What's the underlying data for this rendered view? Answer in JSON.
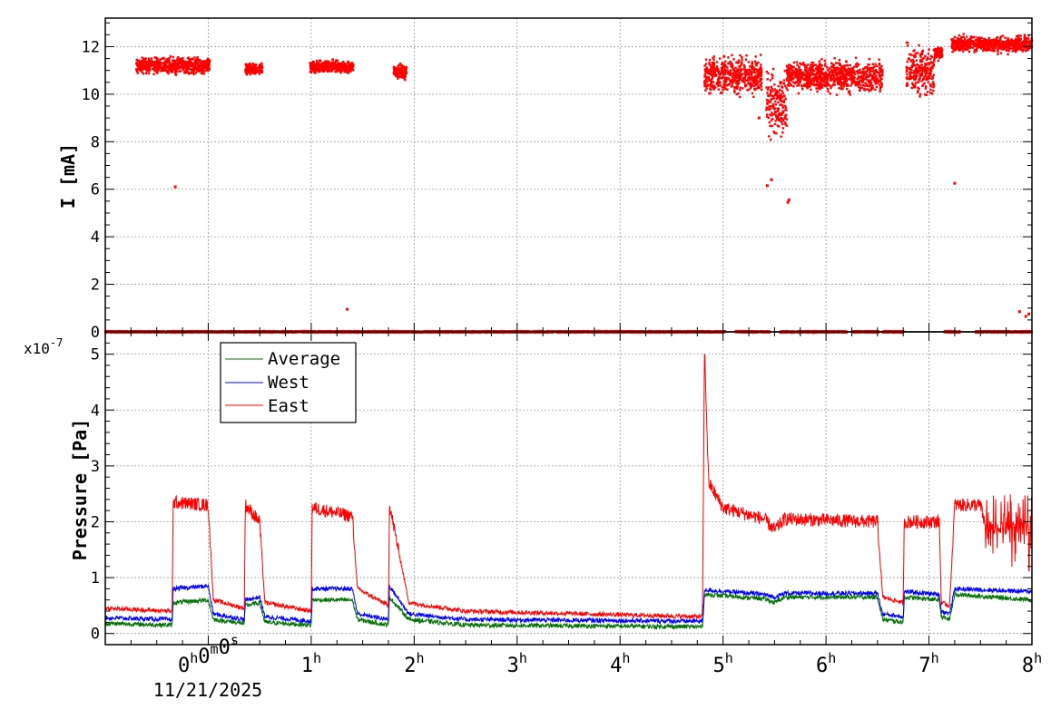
{
  "chart_data": [
    {
      "type": "scatter",
      "ylabel": "I [mA]",
      "ylim": [
        0,
        13.2
      ],
      "yticks": [
        "0",
        "2",
        "4",
        "6",
        "8",
        "10",
        "12"
      ],
      "xlim_hours": [
        -1.0,
        8.0
      ],
      "grid": true,
      "series": [
        {
          "name": "",
          "color": "#ff0000",
          "segments": [
            {
              "x0": -0.7,
              "x1": 0.02,
              "y": 11.2,
              "spread": 0.15
            },
            {
              "x0": 0.36,
              "x1": 0.53,
              "y": 11.05,
              "spread": 0.12
            },
            {
              "x0": 0.99,
              "x1": 1.41,
              "y": 11.15,
              "spread": 0.12
            },
            {
              "x0": 1.8,
              "x1": 1.93,
              "y": 10.95,
              "spread": 0.15
            },
            {
              "x0": 4.82,
              "x1": 5.38,
              "y": 10.8,
              "spread": 0.35
            },
            {
              "x0": 5.42,
              "x1": 5.62,
              "y": 9.5,
              "spread": 0.6
            },
            {
              "x0": 5.62,
              "x1": 6.55,
              "y": 10.75,
              "spread": 0.3
            },
            {
              "x0": 6.78,
              "x1": 7.05,
              "y": 11.0,
              "spread": 0.45
            },
            {
              "x0": 7.05,
              "x1": 7.13,
              "y": 11.7,
              "spread": 0.12
            },
            {
              "x0": 7.22,
              "x1": 8.0,
              "y": 12.1,
              "spread": 0.15
            }
          ],
          "zero_segments": [
            [
              -1.0,
              4.8
            ],
            [
              4.8,
              5.02
            ],
            [
              5.12,
              5.45
            ],
            [
              5.55,
              5.7
            ],
            [
              5.72,
              6.2
            ],
            [
              6.25,
              6.52
            ],
            [
              6.55,
              6.75
            ],
            [
              7.15,
              7.3
            ],
            [
              7.45,
              8.0
            ]
          ],
          "outliers": [
            {
              "x": -0.32,
              "y": 6.1
            },
            {
              "x": 1.35,
              "y": 0.95
            },
            {
              "x": 5.35,
              "y": 9.0
            },
            {
              "x": 5.43,
              "y": 6.15
            },
            {
              "x": 5.47,
              "y": 6.4
            },
            {
              "x": 5.63,
              "y": 5.45
            },
            {
              "x": 5.64,
              "y": 5.55
            },
            {
              "x": 7.25,
              "y": 6.25
            },
            {
              "x": 7.88,
              "y": 0.85
            },
            {
              "x": 7.94,
              "y": 0.65
            },
            {
              "x": 7.97,
              "y": 0.75
            }
          ]
        }
      ]
    },
    {
      "type": "line",
      "ylabel": "Pressure [Pa]",
      "yexponent": "x10",
      "yexponent_power": "-7",
      "ylim": [
        -0.2,
        5.4
      ],
      "yticks": [
        "0",
        "1",
        "2",
        "3",
        "4",
        "5"
      ],
      "xlim_hours": [
        -1.0,
        8.0
      ],
      "xticks": [
        {
          "h": "0",
          "m": "0",
          "s": "0",
          "sup": [
            "h",
            "m",
            "s"
          ]
        },
        {
          "h": "1",
          "sup": [
            "h"
          ]
        },
        {
          "h": "2",
          "sup": [
            "h"
          ]
        },
        {
          "h": "3",
          "sup": [
            "h"
          ]
        },
        {
          "h": "4",
          "sup": [
            "h"
          ]
        },
        {
          "h": "5",
          "sup": [
            "h"
          ]
        },
        {
          "h": "6",
          "sup": [
            "h"
          ]
        },
        {
          "h": "7",
          "sup": [
            "h"
          ]
        },
        {
          "h": "8",
          "sup": [
            "h"
          ]
        }
      ],
      "xdate": "11/21/2025",
      "grid": true,
      "legend_position": "top-left",
      "series": [
        {
          "name": "Average",
          "color": "#007000",
          "profile": [
            [
              -1.0,
              0.18
            ],
            [
              -0.35,
              0.15
            ],
            [
              -0.34,
              0.55
            ],
            [
              0.0,
              0.6
            ],
            [
              0.05,
              0.25
            ],
            [
              0.35,
              0.18
            ],
            [
              0.36,
              0.5
            ],
            [
              0.5,
              0.55
            ],
            [
              0.55,
              0.2
            ],
            [
              1.0,
              0.15
            ],
            [
              1.01,
              0.6
            ],
            [
              1.4,
              0.6
            ],
            [
              1.45,
              0.25
            ],
            [
              1.75,
              0.15
            ],
            [
              1.76,
              0.65
            ],
            [
              1.95,
              0.25
            ],
            [
              2.5,
              0.15
            ],
            [
              4.8,
              0.12
            ],
            [
              4.82,
              0.7
            ],
            [
              5.4,
              0.62
            ],
            [
              5.5,
              0.55
            ],
            [
              5.6,
              0.65
            ],
            [
              6.5,
              0.65
            ],
            [
              6.55,
              0.25
            ],
            [
              6.75,
              0.2
            ],
            [
              6.76,
              0.65
            ],
            [
              7.1,
              0.6
            ],
            [
              7.12,
              0.3
            ],
            [
              7.2,
              0.25
            ],
            [
              7.25,
              0.7
            ],
            [
              8.0,
              0.6
            ]
          ]
        },
        {
          "name": "West",
          "color": "#0000ff",
          "profile": [
            [
              -1.0,
              0.28
            ],
            [
              -0.35,
              0.25
            ],
            [
              -0.34,
              0.8
            ],
            [
              0.0,
              0.85
            ],
            [
              0.05,
              0.35
            ],
            [
              0.35,
              0.25
            ],
            [
              0.36,
              0.6
            ],
            [
              0.5,
              0.65
            ],
            [
              0.55,
              0.3
            ],
            [
              1.0,
              0.22
            ],
            [
              1.01,
              0.8
            ],
            [
              1.4,
              0.8
            ],
            [
              1.45,
              0.35
            ],
            [
              1.75,
              0.25
            ],
            [
              1.76,
              0.85
            ],
            [
              1.95,
              0.35
            ],
            [
              2.5,
              0.25
            ],
            [
              4.8,
              0.22
            ],
            [
              4.82,
              0.78
            ],
            [
              5.4,
              0.7
            ],
            [
              5.5,
              0.65
            ],
            [
              5.6,
              0.72
            ],
            [
              6.5,
              0.72
            ],
            [
              6.55,
              0.35
            ],
            [
              6.75,
              0.3
            ],
            [
              6.76,
              0.75
            ],
            [
              7.1,
              0.7
            ],
            [
              7.12,
              0.4
            ],
            [
              7.2,
              0.35
            ],
            [
              7.25,
              0.8
            ],
            [
              8.0,
              0.75
            ]
          ]
        },
        {
          "name": "East",
          "color": "#ff0000",
          "profile": [
            [
              -1.0,
              0.45
            ],
            [
              -0.35,
              0.4
            ],
            [
              -0.34,
              2.35
            ],
            [
              0.0,
              2.3
            ],
            [
              0.05,
              0.6
            ],
            [
              0.35,
              0.45
            ],
            [
              0.36,
              2.3
            ],
            [
              0.5,
              2.0
            ],
            [
              0.55,
              0.55
            ],
            [
              1.0,
              0.4
            ],
            [
              1.01,
              2.25
            ],
            [
              1.4,
              2.1
            ],
            [
              1.45,
              0.8
            ],
            [
              1.75,
              0.5
            ],
            [
              1.76,
              2.3
            ],
            [
              1.95,
              0.55
            ],
            [
              2.5,
              0.4
            ],
            [
              4.8,
              0.3
            ],
            [
              4.82,
              5.1
            ],
            [
              4.86,
              2.7
            ],
            [
              5.0,
              2.25
            ],
            [
              5.4,
              2.05
            ],
            [
              5.5,
              1.85
            ],
            [
              5.6,
              2.05
            ],
            [
              6.5,
              2.0
            ],
            [
              6.55,
              0.65
            ],
            [
              6.75,
              0.55
            ],
            [
              6.76,
              2.0
            ],
            [
              7.1,
              2.0
            ],
            [
              7.12,
              0.55
            ],
            [
              7.2,
              0.5
            ],
            [
              7.25,
              2.3
            ],
            [
              7.5,
              2.3
            ],
            [
              7.55,
              1.9
            ],
            [
              8.0,
              1.85
            ]
          ]
        }
      ]
    }
  ]
}
